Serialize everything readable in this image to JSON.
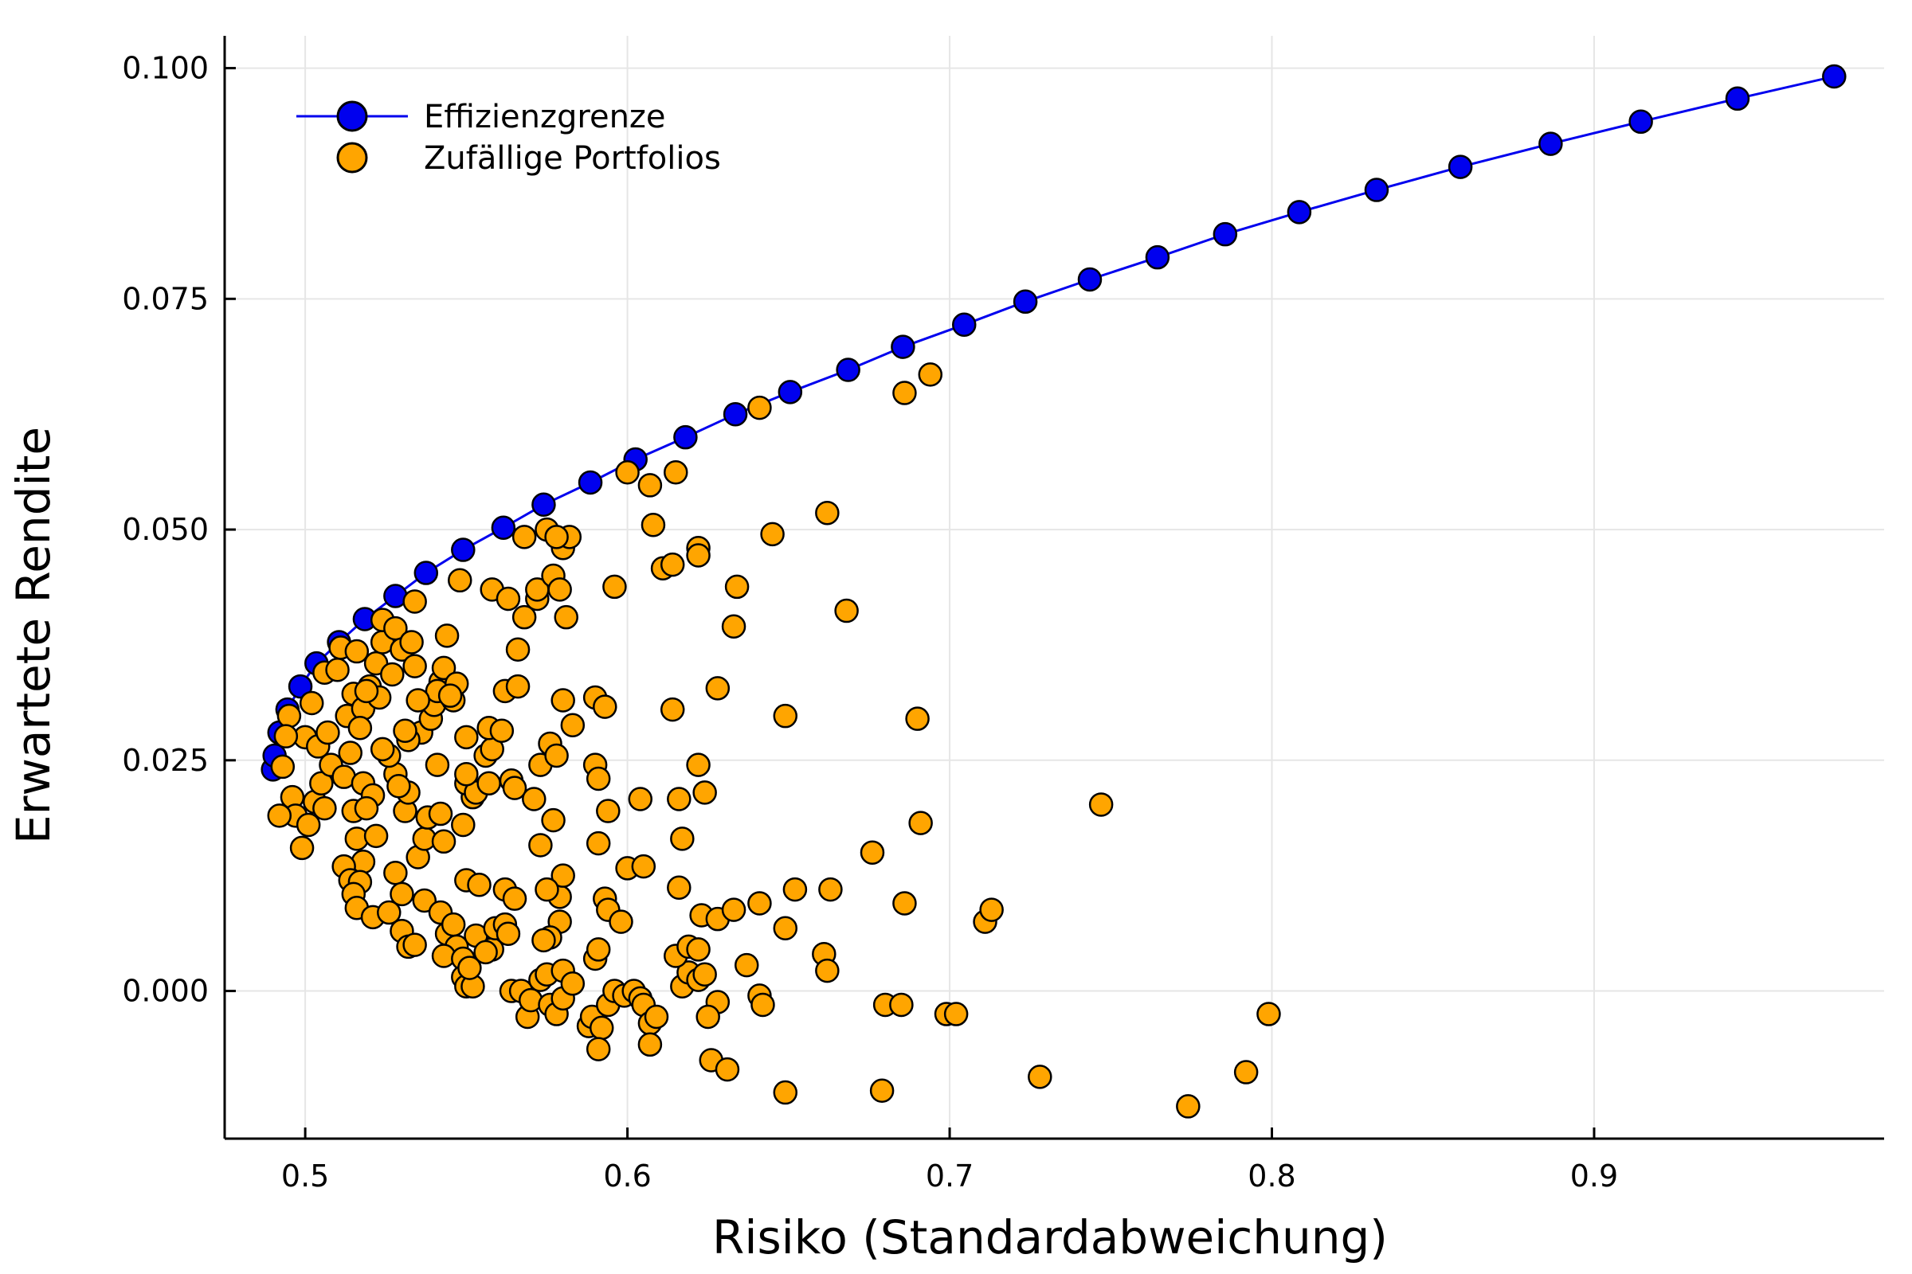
{
  "chart_data": {
    "type": "scatter",
    "xlabel": "Risiko (Standardabweichung)",
    "ylabel": "Erwartete Rendite",
    "xlim": [
      0.475,
      0.99
    ],
    "ylim": [
      -0.016,
      0.1035
    ],
    "xticks": [
      0.5,
      0.6,
      0.7,
      0.8,
      0.9
    ],
    "xtick_labels": [
      "0.5",
      "0.6",
      "0.7",
      "0.8",
      "0.9"
    ],
    "yticks": [
      0.0,
      0.025,
      0.05,
      0.075,
      0.1
    ],
    "ytick_labels": [
      "0.000",
      "0.025",
      "0.050",
      "0.075",
      "0.100"
    ],
    "grid": true,
    "legend_position": "top-left",
    "series": [
      {
        "name": "Effizienzgrenze",
        "kind": "line+markers",
        "color": "#0000ee",
        "points": [
          [
            0.49,
            0.024
          ],
          [
            0.4905,
            0.0255
          ],
          [
            0.492,
            0.028
          ],
          [
            0.4945,
            0.0305
          ],
          [
            0.4985,
            0.033
          ],
          [
            0.5035,
            0.0355
          ],
          [
            0.5105,
            0.0378
          ],
          [
            0.5185,
            0.0403
          ],
          [
            0.528,
            0.0428
          ],
          [
            0.5375,
            0.0453
          ],
          [
            0.549,
            0.0478
          ],
          [
            0.5615,
            0.0502
          ],
          [
            0.574,
            0.0527
          ],
          [
            0.5885,
            0.0551
          ],
          [
            0.6025,
            0.0576
          ],
          [
            0.618,
            0.06
          ],
          [
            0.6335,
            0.0625
          ],
          [
            0.6505,
            0.0649
          ],
          [
            0.6685,
            0.0673
          ],
          [
            0.6855,
            0.0698
          ],
          [
            0.7045,
            0.0722
          ],
          [
            0.7235,
            0.0747
          ],
          [
            0.7435,
            0.0771
          ],
          [
            0.7645,
            0.0795
          ],
          [
            0.7855,
            0.082
          ],
          [
            0.8085,
            0.0844
          ],
          [
            0.8325,
            0.0868
          ],
          [
            0.8585,
            0.0893
          ],
          [
            0.8865,
            0.0918
          ],
          [
            0.9145,
            0.0942
          ],
          [
            0.9445,
            0.0967
          ],
          [
            0.9745,
            0.0991
          ]
        ]
      },
      {
        "name": "Zufällige Portfolios",
        "kind": "scatter",
        "color": "#ffa500",
        "points": [
          [
            0.5,
            0.0275
          ],
          [
            0.495,
            0.0298
          ],
          [
            0.494,
            0.0276
          ],
          [
            0.493,
            0.0243
          ],
          [
            0.496,
            0.021
          ],
          [
            0.497,
            0.019
          ],
          [
            0.492,
            0.019
          ],
          [
            0.499,
            0.0155
          ],
          [
            0.501,
            0.018
          ],
          [
            0.503,
            0.0205
          ],
          [
            0.506,
            0.0198
          ],
          [
            0.505,
            0.0225
          ],
          [
            0.508,
            0.0245
          ],
          [
            0.504,
            0.0265
          ],
          [
            0.507,
            0.028
          ],
          [
            0.502,
            0.0312
          ],
          [
            0.506,
            0.0345
          ],
          [
            0.511,
            0.0372
          ],
          [
            0.51,
            0.0348
          ],
          [
            0.515,
            0.0322
          ],
          [
            0.513,
            0.0298
          ],
          [
            0.518,
            0.0306
          ],
          [
            0.52,
            0.033
          ],
          [
            0.522,
            0.0355
          ],
          [
            0.524,
            0.0378
          ],
          [
            0.524,
            0.0402
          ],
          [
            0.528,
            0.0393
          ],
          [
            0.53,
            0.037
          ],
          [
            0.533,
            0.0378
          ],
          [
            0.534,
            0.0352
          ],
          [
            0.527,
            0.0343
          ],
          [
            0.523,
            0.0318
          ],
          [
            0.516,
            0.0368
          ],
          [
            0.519,
            0.0325
          ],
          [
            0.517,
            0.0285
          ],
          [
            0.514,
            0.0258
          ],
          [
            0.512,
            0.0232
          ],
          [
            0.518,
            0.0225
          ],
          [
            0.521,
            0.0212
          ],
          [
            0.515,
            0.0195
          ],
          [
            0.519,
            0.0198
          ],
          [
            0.516,
            0.0165
          ],
          [
            0.522,
            0.0168
          ],
          [
            0.518,
            0.014
          ],
          [
            0.512,
            0.0135
          ],
          [
            0.514,
            0.012
          ],
          [
            0.517,
            0.0118
          ],
          [
            0.515,
            0.0105
          ],
          [
            0.516,
            0.009
          ],
          [
            0.521,
            0.008
          ],
          [
            0.526,
            0.0085
          ],
          [
            0.528,
            0.0128
          ],
          [
            0.53,
            0.0105
          ],
          [
            0.53,
            0.0065
          ],
          [
            0.532,
            0.0048
          ],
          [
            0.534,
            0.005
          ],
          [
            0.535,
            0.0145
          ],
          [
            0.537,
            0.0165
          ],
          [
            0.538,
            0.0188
          ],
          [
            0.531,
            0.0195
          ],
          [
            0.532,
            0.0215
          ],
          [
            0.528,
            0.0235
          ],
          [
            0.526,
            0.0255
          ],
          [
            0.524,
            0.0262
          ],
          [
            0.529,
            0.0222
          ],
          [
            0.536,
            0.028
          ],
          [
            0.532,
            0.0272
          ],
          [
            0.531,
            0.0282
          ],
          [
            0.539,
            0.0295
          ],
          [
            0.54,
            0.031
          ],
          [
            0.542,
            0.0335
          ],
          [
            0.543,
            0.035
          ],
          [
            0.541,
            0.0325
          ],
          [
            0.535,
            0.0315
          ],
          [
            0.544,
            0.0385
          ],
          [
            0.534,
            0.0422
          ],
          [
            0.546,
            0.0315
          ],
          [
            0.547,
            0.0333
          ],
          [
            0.545,
            0.032
          ],
          [
            0.541,
            0.0245
          ],
          [
            0.542,
            0.0192
          ],
          [
            0.543,
            0.0162
          ],
          [
            0.537,
            0.0098
          ],
          [
            0.542,
            0.0085
          ],
          [
            0.544,
            0.0062
          ],
          [
            0.546,
            0.0072
          ],
          [
            0.547,
            0.0048
          ],
          [
            0.543,
            0.0038
          ],
          [
            0.549,
            0.0035
          ],
          [
            0.549,
            0.0015
          ],
          [
            0.55,
            0.0005
          ],
          [
            0.552,
            0.0005
          ],
          [
            0.551,
            0.0025
          ],
          [
            0.553,
            0.006
          ],
          [
            0.55,
            0.012
          ],
          [
            0.554,
            0.0115
          ],
          [
            0.549,
            0.018
          ],
          [
            0.552,
            0.021
          ],
          [
            0.55,
            0.0225
          ],
          [
            0.553,
            0.0215
          ],
          [
            0.55,
            0.0235
          ],
          [
            0.556,
            0.0255
          ],
          [
            0.558,
            0.0262
          ],
          [
            0.557,
            0.0285
          ],
          [
            0.55,
            0.0275
          ],
          [
            0.561,
            0.0282
          ],
          [
            0.562,
            0.0325
          ],
          [
            0.566,
            0.033
          ],
          [
            0.557,
            0.0225
          ],
          [
            0.564,
            0.0228
          ],
          [
            0.565,
            0.022
          ],
          [
            0.558,
            0.0045
          ],
          [
            0.556,
            0.0042
          ],
          [
            0.559,
            0.0068
          ],
          [
            0.562,
            0.0072
          ],
          [
            0.563,
            0.0062
          ],
          [
            0.562,
            0.011
          ],
          [
            0.565,
            0.01
          ],
          [
            0.564,
            0.0
          ],
          [
            0.567,
            0.0
          ],
          [
            0.569,
            -0.0028
          ],
          [
            0.57,
            -0.001
          ],
          [
            0.573,
            0.0012
          ],
          [
            0.575,
            0.0018
          ],
          [
            0.576,
            -0.0015
          ],
          [
            0.578,
            -0.0025
          ],
          [
            0.58,
            -0.0008
          ],
          [
            0.58,
            0.0022
          ],
          [
            0.583,
            0.0008
          ],
          [
            0.579,
            0.0075
          ],
          [
            0.579,
            0.0102
          ],
          [
            0.58,
            0.0125
          ],
          [
            0.577,
            0.0185
          ],
          [
            0.575,
            0.011
          ],
          [
            0.573,
            0.0158
          ],
          [
            0.571,
            0.0208
          ],
          [
            0.573,
            0.0245
          ],
          [
            0.576,
            0.0268
          ],
          [
            0.578,
            0.0255
          ],
          [
            0.58,
            0.0315
          ],
          [
            0.583,
            0.0288
          ],
          [
            0.576,
            0.0058
          ],
          [
            0.574,
            0.0055
          ],
          [
            0.558,
            0.0435
          ],
          [
            0.548,
            0.0445
          ],
          [
            0.563,
            0.0425
          ],
          [
            0.566,
            0.037
          ],
          [
            0.568,
            0.0405
          ],
          [
            0.572,
            0.0425
          ],
          [
            0.572,
            0.0435
          ],
          [
            0.577,
            0.045
          ],
          [
            0.579,
            0.0435
          ],
          [
            0.581,
            0.0405
          ],
          [
            0.58,
            0.048
          ],
          [
            0.582,
            0.0492
          ],
          [
            0.568,
            0.0492
          ],
          [
            0.575,
            0.05
          ],
          [
            0.578,
            0.0492
          ],
          [
            0.59,
            0.0318
          ],
          [
            0.593,
            0.0308
          ],
          [
            0.59,
            0.0245
          ],
          [
            0.591,
            0.023
          ],
          [
            0.594,
            0.0195
          ],
          [
            0.591,
            0.016
          ],
          [
            0.593,
            0.01
          ],
          [
            0.594,
            0.0088
          ],
          [
            0.598,
            0.0075
          ],
          [
            0.59,
            0.0035
          ],
          [
            0.591,
            0.0045
          ],
          [
            0.588,
            -0.0038
          ],
          [
            0.589,
            -0.0028
          ],
          [
            0.592,
            -0.004
          ],
          [
            0.594,
            -0.0015
          ],
          [
            0.596,
            0.0
          ],
          [
            0.599,
            -0.0005
          ],
          [
            0.602,
            0.0
          ],
          [
            0.604,
            -0.0008
          ],
          [
            0.605,
            -0.0015
          ],
          [
            0.607,
            -0.0035
          ],
          [
            0.609,
            -0.0028
          ],
          [
            0.607,
            -0.0058
          ],
          [
            0.591,
            -0.0063
          ],
          [
            0.6,
            0.0133
          ],
          [
            0.605,
            0.0135
          ],
          [
            0.604,
            0.0208
          ],
          [
            0.614,
            0.0305
          ],
          [
            0.616,
            0.0208
          ],
          [
            0.617,
            0.0165
          ],
          [
            0.616,
            0.0112
          ],
          [
            0.622,
            0.0245
          ],
          [
            0.624,
            0.0215
          ],
          [
            0.623,
            0.0082
          ],
          [
            0.628,
            0.0078
          ],
          [
            0.633,
            0.0088
          ],
          [
            0.628,
            0.0328
          ],
          [
            0.633,
            0.0395
          ],
          [
            0.634,
            0.0438
          ],
          [
            0.611,
            0.0458
          ],
          [
            0.614,
            0.0462
          ],
          [
            0.622,
            0.048
          ],
          [
            0.622,
            0.0472
          ],
          [
            0.608,
            0.0505
          ],
          [
            0.607,
            0.0548
          ],
          [
            0.6,
            0.0562
          ],
          [
            0.615,
            0.0562
          ],
          [
            0.596,
            0.0438
          ],
          [
            0.641,
            0.0632
          ],
          [
            0.645,
            0.0495
          ],
          [
            0.662,
            0.0518
          ],
          [
            0.668,
            0.0412
          ],
          [
            0.649,
            0.0298
          ],
          [
            0.641,
            0.0095
          ],
          [
            0.652,
            0.011
          ],
          [
            0.663,
            0.011
          ],
          [
            0.649,
            0.0068
          ],
          [
            0.661,
            0.004
          ],
          [
            0.662,
            0.0022
          ],
          [
            0.637,
            0.0028
          ],
          [
            0.641,
            -0.0005
          ],
          [
            0.642,
            -0.0015
          ],
          [
            0.628,
            -0.0012
          ],
          [
            0.625,
            -0.0028
          ],
          [
            0.617,
            0.0005
          ],
          [
            0.619,
            0.002
          ],
          [
            0.615,
            0.0038
          ],
          [
            0.619,
            0.0048
          ],
          [
            0.622,
            0.0045
          ],
          [
            0.622,
            0.0012
          ],
          [
            0.624,
            0.0018
          ],
          [
            0.626,
            -0.0075
          ],
          [
            0.631,
            -0.0085
          ],
          [
            0.649,
            -0.011
          ],
          [
            0.679,
            -0.0108
          ],
          [
            0.68,
            -0.0015
          ],
          [
            0.685,
            -0.0015
          ],
          [
            0.686,
            0.0095
          ],
          [
            0.676,
            0.015
          ],
          [
            0.69,
            0.0295
          ],
          [
            0.691,
            0.0182
          ],
          [
            0.686,
            0.0648
          ],
          [
            0.694,
            0.0668
          ],
          [
            0.699,
            -0.0025
          ],
          [
            0.702,
            -0.0025
          ],
          [
            0.711,
            0.0075
          ],
          [
            0.713,
            0.0088
          ],
          [
            0.728,
            -0.0093
          ],
          [
            0.747,
            0.0202
          ],
          [
            0.774,
            -0.0125
          ],
          [
            0.792,
            -0.0088
          ],
          [
            0.799,
            -0.0025
          ]
        ]
      }
    ]
  }
}
